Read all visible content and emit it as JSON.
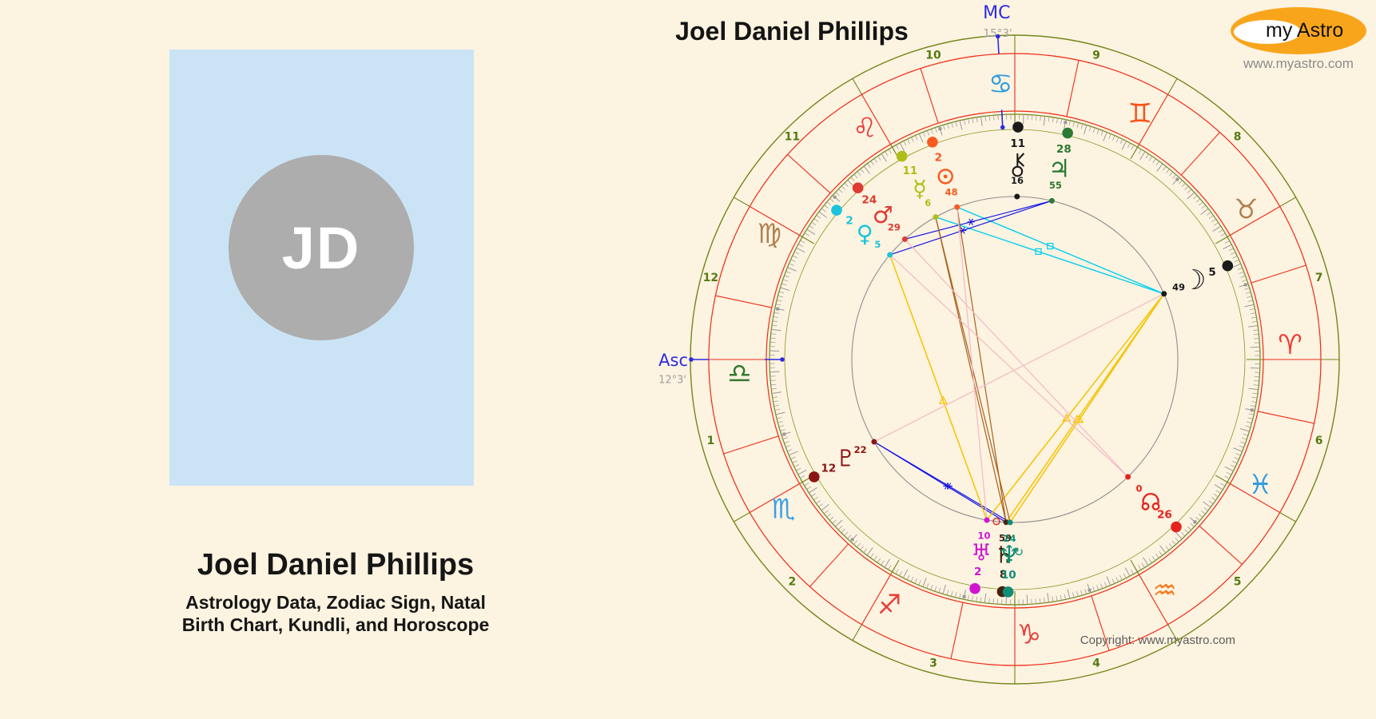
{
  "profile_card": {
    "initials": "JD",
    "name": "Joel Daniel Phillips",
    "subtitle_line1": "Astrology Data, Zodiac Sign, Natal",
    "subtitle_line2": "Birth Chart, Kundli, and Horoscope"
  },
  "logo": {
    "my": "my",
    "astro": "Astro",
    "website": "www.myastro.com"
  },
  "chart_title": "Joel Daniel Phillips",
  "copyright": "Copyright: www.myastro.com",
  "chart_data": {
    "type": "natal-wheel",
    "angles": {
      "mc": {
        "label": "MC",
        "position": "15°3'",
        "longitude": 105.05,
        "color": "#2B2BE2"
      },
      "asc": {
        "label": "Asc",
        "position": "12°3'",
        "longitude": 192.05,
        "color": "#2B2BE2"
      }
    },
    "houses": [
      "1",
      "2",
      "3",
      "4",
      "5",
      "6",
      "7",
      "8",
      "9",
      "10",
      "11",
      "12"
    ],
    "signs": [
      {
        "name": "Aries",
        "symbol": "♈",
        "color": "#EF3A34",
        "start": 0
      },
      {
        "name": "Taurus",
        "symbol": "♉",
        "color": "#B08050",
        "start": 30
      },
      {
        "name": "Gemini",
        "symbol": "♊",
        "color": "#F95318",
        "start": 60
      },
      {
        "name": "Cancer",
        "symbol": "♋",
        "color": "#2E9BE0",
        "start": 90
      },
      {
        "name": "Leo",
        "symbol": "♌",
        "color": "#EF3A34",
        "start": 120
      },
      {
        "name": "Virgo",
        "symbol": "♍",
        "color": "#B08050",
        "start": 150
      },
      {
        "name": "Libra",
        "symbol": "♎",
        "color": "#357A32",
        "start": 180
      },
      {
        "name": "Scorpio",
        "symbol": "♏",
        "color": "#3AA0E8",
        "start": 210
      },
      {
        "name": "Sagittarius",
        "symbol": "♐",
        "color": "#E6413D",
        "start": 240
      },
      {
        "name": "Capricorn",
        "symbol": "♑",
        "color": "#E6413D",
        "start": 270
      },
      {
        "name": "Aquarius",
        "symbol": "♒",
        "color": "#F47B20",
        "start": 300
      },
      {
        "name": "Pisces",
        "symbol": "♓",
        "color": "#2E9BE0",
        "start": 330
      }
    ],
    "planets": [
      {
        "name": "Sun",
        "sym": "☉",
        "color": "#F95A1F",
        "sign": "Leo",
        "deg": "2",
        "min": "48",
        "longitude": 122.8
      },
      {
        "name": "Moon",
        "sym": "☽",
        "color": "#1A1A1A",
        "sign": "Taurus",
        "deg": "5",
        "min": "49",
        "longitude": 35.82
      },
      {
        "name": "Mercury",
        "sym": "☿",
        "color": "#AEBE17",
        "sign": "Leo",
        "deg": "11",
        "min": "6",
        "longitude": 131.1
      },
      {
        "name": "Venus",
        "sym": "♀",
        "color": "#1BC4DC",
        "sign": "Virgo",
        "deg": "2",
        "min": "5",
        "longitude": 152.08
      },
      {
        "name": "Mars",
        "sym": "♂",
        "color": "#DF3B33",
        "sign": "Leo",
        "deg": "24",
        "min": "29",
        "longitude": 144.48
      },
      {
        "name": "Jupiter",
        "sym": "♃",
        "color": "#2C7A33",
        "sign": "Gemini",
        "deg": "28",
        "min": "55",
        "longitude": 88.92
      },
      {
        "name": "Saturn",
        "sym": "♄",
        "color": "#45240F",
        "sign": "Capricorn",
        "deg": "8",
        "min": "59",
        "longitude": 278.98
      },
      {
        "name": "Uranus",
        "sym": "♅",
        "color": "#D014D0",
        "sign": "Capricorn",
        "deg": "2",
        "min": "10",
        "longitude": 272.17
      },
      {
        "name": "Neptune",
        "sym": "♆",
        "color": "#0F8E77",
        "sign": "Capricorn",
        "deg": "10",
        "min": "24",
        "longitude": 280.4,
        "retrograde": true
      },
      {
        "name": "Pluto",
        "sym": "♇",
        "color": "#8C1616",
        "sign": "Scorpio",
        "deg": "12",
        "min": "22",
        "longitude": 222.37
      },
      {
        "name": "North Node",
        "sym": "☊",
        "color": "#E6231E",
        "sign": "Aquarius",
        "deg": "26",
        "min": "0",
        "longitude": 326.0
      },
      {
        "name": "Chiron",
        "sym": "⚷",
        "color": "#1A1A1A",
        "sign": "Cancer",
        "deg": "11",
        "min": "16",
        "longitude": 101.27
      }
    ],
    "aspects": [
      {
        "a": "Moon",
        "b": "Sun",
        "type": "square",
        "color": "#00CFEF"
      },
      {
        "a": "Moon",
        "b": "Mercury",
        "type": "square",
        "color": "#00CFEF"
      },
      {
        "a": "Jupiter",
        "b": "Mars",
        "type": "sextile",
        "color": "#1515E5"
      },
      {
        "a": "Jupiter",
        "b": "Venus",
        "type": "sextile",
        "color": "#1515E5"
      },
      {
        "a": "Pluto",
        "b": "Saturn",
        "type": "sextile",
        "color": "#1515E5"
      },
      {
        "a": "Pluto",
        "b": "Neptune",
        "type": "sextile",
        "color": "#1515E5"
      },
      {
        "a": "Moon",
        "b": "Saturn",
        "type": "trine",
        "color": "#F5C400"
      },
      {
        "a": "Moon",
        "b": "Neptune",
        "type": "trine",
        "color": "#F5C400"
      },
      {
        "a": "Moon",
        "b": "Uranus",
        "type": "trine",
        "color": "#F5C400"
      },
      {
        "a": "Venus",
        "b": "Uranus",
        "type": "trine",
        "color": "#F5C400"
      },
      {
        "a": "Mercury",
        "b": "Saturn",
        "type": "opposition",
        "color": "#A8601E"
      },
      {
        "a": "Mercury",
        "b": "Neptune",
        "type": "opposition",
        "color": "#A8601E"
      },
      {
        "a": "Sun",
        "b": "Saturn",
        "type": "opposition",
        "color": "#A8601E"
      },
      {
        "a": "Sun",
        "b": "Uranus",
        "type": "quincunx",
        "color": "#F2B9C6"
      },
      {
        "a": "Mars",
        "b": "North Node",
        "type": "opposition",
        "color": "#F2B9C6"
      },
      {
        "a": "Moon",
        "b": "Pluto",
        "type": "opposition",
        "color": "#F2B9C6"
      },
      {
        "a": "Venus",
        "b": "North Node",
        "type": "opposition",
        "color": "#F2B9C6"
      },
      {
        "a": "Uranus",
        "b": "Saturn",
        "type": "conjunction",
        "color": "#E6231E"
      }
    ]
  }
}
